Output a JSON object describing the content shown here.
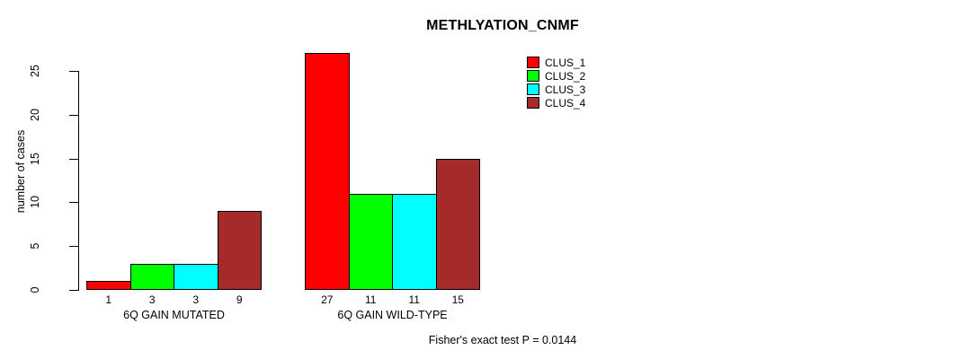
{
  "chart_data": {
    "type": "bar",
    "title": "METHLYATION_CNMF",
    "xlabel": "",
    "ylabel": "number of cases",
    "ylim": [
      0,
      25
    ],
    "yticks": [
      0,
      5,
      10,
      15,
      20,
      25
    ],
    "categories": [
      "6Q GAIN MUTATED",
      "6Q GAIN WILD-TYPE"
    ],
    "series": [
      {
        "name": "CLUS_1",
        "color": "#FF0000",
        "values": [
          1,
          27
        ]
      },
      {
        "name": "CLUS_2",
        "color": "#00FF00",
        "values": [
          3,
          11
        ]
      },
      {
        "name": "CLUS_3",
        "color": "#00FFFF",
        "values": [
          3,
          11
        ]
      },
      {
        "name": "CLUS_4",
        "color": "#A52A2A",
        "values": [
          9,
          15
        ]
      }
    ],
    "bar_value_labels": [
      [
        "1",
        "3",
        "3",
        "9"
      ],
      [
        "27",
        "11",
        "11",
        "15"
      ]
    ],
    "legend_position": "top-right",
    "grid": false,
    "annotation": "Fisher's exact test P = 0.0144"
  }
}
